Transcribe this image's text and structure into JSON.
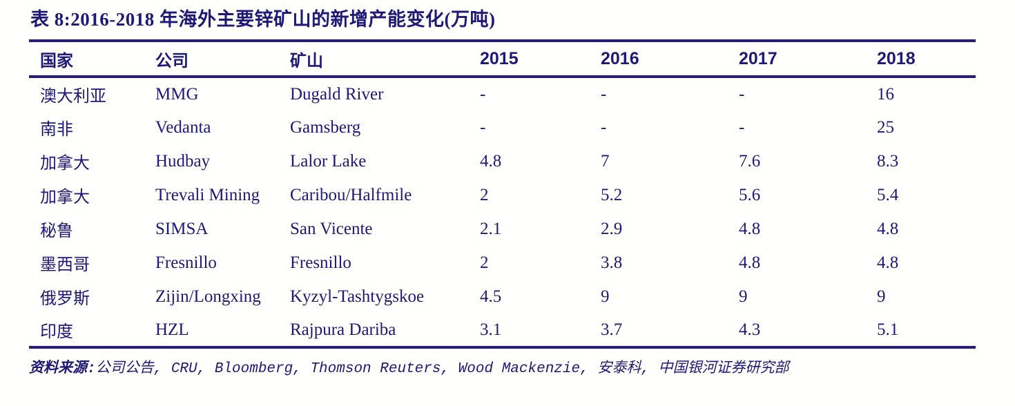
{
  "title": "表 8:2016-2018 年海外主要锌矿山的新增产能变化(万吨)",
  "table": {
    "columns": [
      {
        "key": "country",
        "label": "国家",
        "type": "text"
      },
      {
        "key": "company",
        "label": "公司",
        "type": "text"
      },
      {
        "key": "mine",
        "label": "矿山",
        "type": "text"
      },
      {
        "key": "2015",
        "label": "2015",
        "type": "year"
      },
      {
        "key": "2016",
        "label": "2016",
        "type": "year"
      },
      {
        "key": "2017",
        "label": "2017",
        "type": "year"
      },
      {
        "key": "2018",
        "label": "2018",
        "type": "year"
      }
    ],
    "rows": [
      [
        "澳大利亚",
        "MMG",
        "Dugald River",
        "-",
        "-",
        "-",
        "16"
      ],
      [
        "南非",
        "Vedanta",
        "Gamsberg",
        "-",
        "-",
        "-",
        "25"
      ],
      [
        "加拿大",
        "Hudbay",
        "Lalor Lake",
        "4.8",
        "7",
        "7.6",
        "8.3"
      ],
      [
        "加拿大",
        "Trevali Mining",
        "Caribou/Halfmile",
        "2",
        "5.2",
        "5.6",
        "5.4"
      ],
      [
        "秘鲁",
        "SIMSA",
        "San Vicente",
        "2.1",
        "2.9",
        "4.8",
        "4.8"
      ],
      [
        "墨西哥",
        "Fresnillo",
        "Fresnillo",
        "2",
        "3.8",
        "4.8",
        "4.8"
      ],
      [
        "俄罗斯",
        "Zijin/Longxing",
        "Kyzyl-Tashtygskoe",
        "4.5",
        "9",
        "9",
        "9"
      ],
      [
        "印度",
        "HZL",
        "Rajpura Dariba",
        "3.1",
        "3.7",
        "4.3",
        "5.1"
      ]
    ]
  },
  "footer": {
    "label": "资料来源:",
    "sources": "公司公告, CRU, Bloomberg, Thomson Reuters, Wood Mackenzie, 安泰科, 中国银河证券研究部"
  },
  "colors": {
    "ink": "#1e1878",
    "line": "#241d80",
    "page-bg": "#fffffe"
  }
}
